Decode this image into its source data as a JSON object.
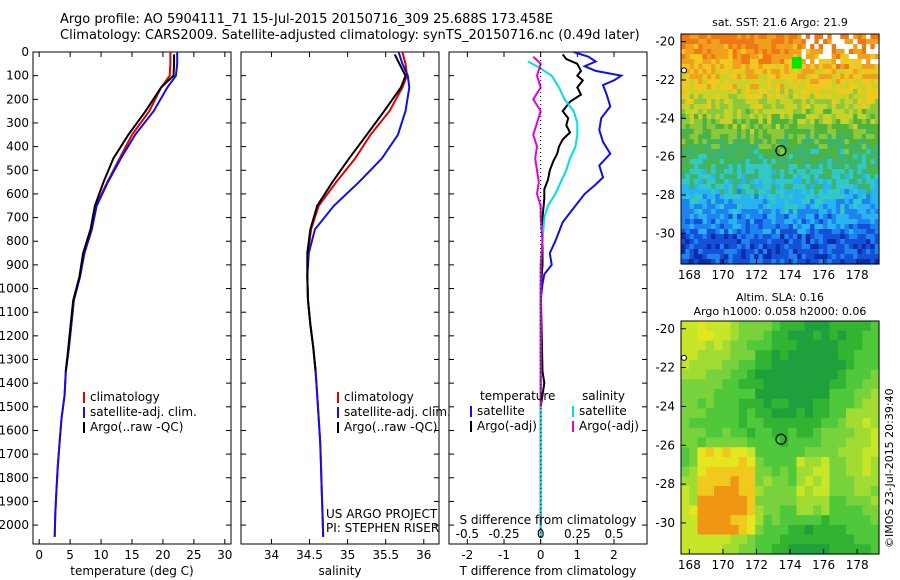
{
  "header": {
    "title_line1": "Argo profile: AO 5904111_71 15-Jul-2015 20150716_309 25.688S 173.458E",
    "title_line2": "Climatology: CARS2009. Satellite-adjusted climatology: synTS_20150716.nc (0.49d later)"
  },
  "credits": {
    "project": "US ARGO PROJECT",
    "pi": "PI: STEPHEN RISER",
    "imos": "©IMOS 23-Jul-2015 20:39:40"
  },
  "colors": {
    "climatology": "#e00000",
    "satellite": "#1010e0",
    "argo": "#000000",
    "sat_salinity": "#00e0e0",
    "argo_salinity": "#e000e0"
  },
  "chart_data": [
    {
      "type": "line",
      "id": "temperature",
      "xlabel": "temperature (deg C)",
      "ylabel": "",
      "xlim": [
        -1,
        31
      ],
      "ylim": [
        2080,
        0
      ],
      "xticks": [
        0,
        5,
        10,
        15,
        20,
        25,
        30
      ],
      "yticks": [
        0,
        100,
        200,
        300,
        400,
        500,
        600,
        700,
        800,
        900,
        1000,
        1100,
        1200,
        1300,
        1400,
        1500,
        1600,
        1700,
        1800,
        1900,
        2000
      ],
      "legend": [
        "climatology",
        "satellite-adj. clim.",
        "Argo(..raw -QC)"
      ],
      "series": [
        {
          "name": "climatology",
          "color_key": "climatology",
          "points": [
            [
              21.2,
              0
            ],
            [
              21.2,
              50
            ],
            [
              21.1,
              100
            ],
            [
              19.7,
              150
            ],
            [
              17.8,
              250
            ],
            [
              15,
              350
            ],
            [
              13,
              450
            ],
            [
              11,
              550
            ],
            [
              9.2,
              650
            ],
            [
              8.5,
              750
            ],
            [
              7.3,
              850
            ],
            [
              6.6,
              950
            ],
            [
              5.6,
              1050
            ],
            [
              5.2,
              1150
            ],
            [
              4.8,
              1250
            ],
            [
              4.3,
              1350
            ],
            [
              4.1,
              1450
            ],
            [
              3.6,
              1550
            ],
            [
              3.3,
              1650
            ],
            [
              3.0,
              1750
            ],
            [
              2.8,
              1850
            ],
            [
              2.6,
              1950
            ],
            [
              2.5,
              2050
            ]
          ]
        },
        {
          "name": "satellite-adj. clim.",
          "color_key": "satellite",
          "points": [
            [
              22.3,
              0
            ],
            [
              22.3,
              50
            ],
            [
              22.1,
              100
            ],
            [
              20.7,
              150
            ],
            [
              18.5,
              250
            ],
            [
              15.5,
              350
            ],
            [
              13.2,
              450
            ],
            [
              11.1,
              550
            ],
            [
              9.3,
              650
            ],
            [
              8.5,
              750
            ],
            [
              7.3,
              850
            ],
            [
              6.6,
              950
            ],
            [
              5.6,
              1050
            ],
            [
              5.2,
              1150
            ],
            [
              4.8,
              1250
            ],
            [
              4.3,
              1350
            ],
            [
              4.1,
              1450
            ],
            [
              3.6,
              1550
            ],
            [
              3.3,
              1650
            ],
            [
              3.0,
              1750
            ],
            [
              2.8,
              1850
            ],
            [
              2.6,
              1950
            ],
            [
              2.5,
              2050
            ]
          ]
        },
        {
          "name": "Argo(..raw -QC)",
          "color_key": "argo",
          "points": [
            [
              21.8,
              10
            ],
            [
              21.8,
              50
            ],
            [
              21.7,
              100
            ],
            [
              19.7,
              150
            ],
            [
              17.2,
              250
            ],
            [
              14.4,
              350
            ],
            [
              12.0,
              450
            ],
            [
              10.4,
              550
            ],
            [
              9.0,
              650
            ],
            [
              8.3,
              750
            ],
            [
              7.1,
              850
            ],
            [
              6.5,
              950
            ],
            [
              5.5,
              1050
            ],
            [
              5.1,
              1150
            ],
            [
              4.7,
              1250
            ],
            [
              4.3,
              1350
            ]
          ]
        }
      ]
    },
    {
      "type": "line",
      "id": "salinity",
      "xlabel": "salinity",
      "ylabel": "",
      "xlim": [
        33.6,
        36.2
      ],
      "ylim": [
        2080,
        0
      ],
      "xticks": [
        34,
        34.5,
        35,
        35.5,
        36
      ],
      "legend": [
        "climatology",
        "satellite-adj. clim.",
        "Argo(..raw -QC)"
      ],
      "series": [
        {
          "name": "climatology",
          "color_key": "climatology",
          "points": [
            [
              35.72,
              0
            ],
            [
              35.76,
              50
            ],
            [
              35.78,
              100
            ],
            [
              35.72,
              150
            ],
            [
              35.55,
              250
            ],
            [
              35.3,
              350
            ],
            [
              35.1,
              450
            ],
            [
              34.85,
              550
            ],
            [
              34.62,
              650
            ],
            [
              34.52,
              750
            ],
            [
              34.48,
              850
            ],
            [
              34.47,
              950
            ],
            [
              34.48,
              1050
            ],
            [
              34.51,
              1150
            ],
            [
              34.55,
              1250
            ],
            [
              34.58,
              1350
            ],
            [
              34.6,
              1450
            ],
            [
              34.62,
              1550
            ],
            [
              34.64,
              1650
            ],
            [
              34.65,
              1750
            ],
            [
              34.66,
              1850
            ],
            [
              34.67,
              1950
            ],
            [
              34.68,
              2050
            ]
          ]
        },
        {
          "name": "satellite-adj. clim.",
          "color_key": "satellite",
          "points": [
            [
              35.67,
              0
            ],
            [
              35.72,
              50
            ],
            [
              35.79,
              100
            ],
            [
              35.81,
              150
            ],
            [
              35.76,
              250
            ],
            [
              35.66,
              350
            ],
            [
              35.45,
              450
            ],
            [
              35.15,
              550
            ],
            [
              34.82,
              650
            ],
            [
              34.57,
              750
            ],
            [
              34.49,
              850
            ],
            [
              34.47,
              950
            ],
            [
              34.48,
              1050
            ],
            [
              34.51,
              1150
            ],
            [
              34.55,
              1250
            ],
            [
              34.58,
              1350
            ],
            [
              34.6,
              1450
            ],
            [
              34.62,
              1550
            ],
            [
              34.64,
              1650
            ],
            [
              34.65,
              1750
            ],
            [
              34.66,
              1850
            ],
            [
              34.67,
              1950
            ],
            [
              34.68,
              2050
            ]
          ]
        },
        {
          "name": "Argo(..raw -QC)",
          "color_key": "argo",
          "points": [
            [
              35.62,
              10
            ],
            [
              35.68,
              50
            ],
            [
              35.76,
              100
            ],
            [
              35.7,
              150
            ],
            [
              35.48,
              250
            ],
            [
              35.25,
              350
            ],
            [
              35.02,
              450
            ],
            [
              34.8,
              550
            ],
            [
              34.6,
              650
            ],
            [
              34.51,
              750
            ],
            [
              34.47,
              850
            ],
            [
              34.47,
              950
            ],
            [
              34.48,
              1050
            ],
            [
              34.51,
              1150
            ],
            [
              34.55,
              1250
            ],
            [
              34.58,
              1350
            ]
          ]
        }
      ]
    },
    {
      "type": "line",
      "id": "difference",
      "xlabel_top": "S difference from climatology",
      "xlabel": "T difference from climatology",
      "xlim": [
        -2.5,
        2.9
      ],
      "xticks": [
        -2,
        -1,
        0,
        1,
        2
      ],
      "xticklabels_s": [
        "-0.5",
        "-0.25",
        "0",
        "0.25",
        "0.5"
      ],
      "xticks_s": [
        -2,
        -1,
        0,
        1,
        2
      ],
      "legend_temperature_title": "temperature",
      "legend_salinity_title": "salinity",
      "legend": [
        "satellite",
        "Argo(-adj)",
        "satellite",
        "Argo(-adj)"
      ],
      "series": [
        {
          "name": "satellite",
          "group": "temperature",
          "color_key": "satellite",
          "points": [
            [
              0.9,
              0
            ],
            [
              1.3,
              20
            ],
            [
              1.5,
              40
            ],
            [
              1.2,
              60
            ],
            [
              1.5,
              80
            ],
            [
              2.2,
              100
            ],
            [
              2.0,
              120
            ],
            [
              1.7,
              140
            ],
            [
              1.8,
              180
            ],
            [
              1.9,
              230
            ],
            [
              1.65,
              280
            ],
            [
              1.6,
              330
            ],
            [
              1.7,
              380
            ],
            [
              1.9,
              430
            ],
            [
              1.6,
              480
            ],
            [
              1.7,
              530
            ],
            [
              1.5,
              560
            ],
            [
              1.2,
              600
            ],
            [
              1.0,
              640
            ],
            [
              0.8,
              680
            ],
            [
              0.6,
              720
            ],
            [
              0.5,
              760
            ],
            [
              0.4,
              800
            ],
            [
              0.25,
              850
            ],
            [
              0.3,
              900
            ],
            [
              0.1,
              940
            ],
            [
              0.05,
              980
            ],
            [
              0,
              1050
            ],
            [
              0,
              1500
            ],
            [
              0,
              2050
            ]
          ]
        },
        {
          "name": "Argo(-adj)",
          "group": "temperature",
          "color_key": "argo",
          "points": [
            [
              0.6,
              10
            ],
            [
              0.7,
              30
            ],
            [
              1.0,
              50
            ],
            [
              1.1,
              80
            ],
            [
              1.0,
              100
            ],
            [
              1.15,
              120
            ],
            [
              1.0,
              150
            ],
            [
              1.1,
              180
            ],
            [
              0.8,
              210
            ],
            [
              0.6,
              250
            ],
            [
              0.75,
              280
            ],
            [
              0.7,
              310
            ],
            [
              0.8,
              340
            ],
            [
              0.6,
              370
            ],
            [
              0.5,
              400
            ],
            [
              0.45,
              430
            ],
            [
              0.35,
              460
            ],
            [
              0.25,
              500
            ],
            [
              0.2,
              540
            ],
            [
              0.1,
              580
            ],
            [
              0.1,
              620
            ],
            [
              0.05,
              700
            ],
            [
              0.05,
              900
            ],
            [
              0,
              1000
            ],
            [
              0.05,
              1350
            ],
            [
              0.1,
              1400
            ],
            [
              0,
              1500
            ]
          ]
        },
        {
          "name": "satellite",
          "group": "salinity",
          "color_key": "sat_salinity",
          "points": [
            [
              -0.35,
              40
            ],
            [
              -0.1,
              60
            ],
            [
              0.1,
              80
            ],
            [
              0.3,
              100
            ],
            [
              0.5,
              150
            ],
            [
              0.65,
              200
            ],
            [
              0.9,
              250
            ],
            [
              1.0,
              300
            ],
            [
              1.0,
              350
            ],
            [
              0.95,
              400
            ],
            [
              0.8,
              450
            ],
            [
              0.7,
              500
            ],
            [
              0.55,
              550
            ],
            [
              0.4,
              600
            ],
            [
              0.2,
              650
            ],
            [
              0.1,
              700
            ],
            [
              0.05,
              800
            ],
            [
              0,
              900
            ],
            [
              0,
              2050
            ]
          ]
        },
        {
          "name": "Argo(-adj)",
          "group": "salinity",
          "color_key": "argo_salinity",
          "points": [
            [
              -0.2,
              20
            ],
            [
              0,
              50
            ],
            [
              -0.1,
              100
            ],
            [
              0,
              150
            ],
            [
              -0.2,
              200
            ],
            [
              0,
              250
            ],
            [
              -0.1,
              300
            ],
            [
              -0.2,
              350
            ],
            [
              -0.1,
              400
            ],
            [
              -0.15,
              450
            ],
            [
              -0.1,
              500
            ],
            [
              -0.05,
              550
            ],
            [
              -0.1,
              600
            ],
            [
              0,
              650
            ],
            [
              0,
              700
            ],
            [
              0.05,
              800
            ],
            [
              0,
              900
            ],
            [
              0,
              1500
            ]
          ]
        }
      ]
    },
    {
      "type": "heatmap",
      "id": "sst-map",
      "title": "sat. SST: 21.6 Argo: 21.9",
      "xlim": [
        167.5,
        179.3
      ],
      "ylim": [
        -31.6,
        -19.6
      ],
      "xticks": [
        168,
        170,
        172,
        174,
        176,
        178
      ],
      "yticks": [
        -20,
        -22,
        -24,
        -26,
        -28,
        -30
      ],
      "marker": {
        "lon": 173.458,
        "lat": -25.688
      }
    },
    {
      "type": "heatmap",
      "id": "sla-map",
      "title": "Altim. SLA: 0.16",
      "subtitle": "Argo h1000: 0.058 h2000: 0.06",
      "xlim": [
        167.5,
        179.3
      ],
      "ylim": [
        -31.6,
        -19.6
      ],
      "xticks": [
        168,
        170,
        172,
        174,
        176,
        178
      ],
      "yticks": [
        -20,
        -22,
        -24,
        -26,
        -28,
        -30
      ],
      "marker": {
        "lon": 173.458,
        "lat": -25.688
      }
    }
  ]
}
